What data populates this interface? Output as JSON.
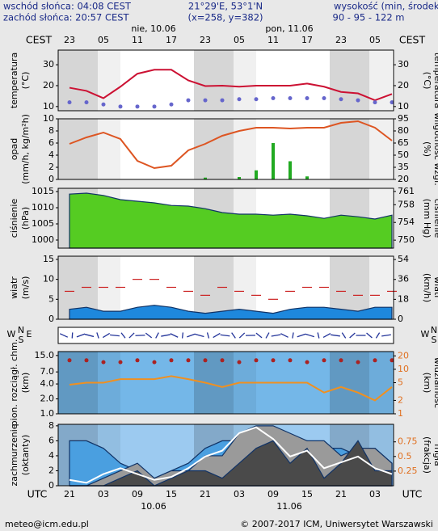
{
  "header": {
    "sunrise": "wschód słońca: 04:08 CEST",
    "sunset": "zachód słońca: 20:57 CEST",
    "coords": "21°29'E, 53°1'N",
    "grid_point": "(x=258, y=382)",
    "height_title": "wysokość (min, środek, max",
    "height_values": "90 - 95 - 122 m"
  },
  "time_axis": {
    "top_zone": "CEST",
    "bottom_zone": "UTC",
    "cest": [
      "23",
      "05",
      "11",
      "17",
      "23",
      "05",
      "11",
      "17",
      "23",
      "05"
    ],
    "utc": [
      "21",
      "03",
      "09",
      "15",
      "21",
      "03",
      "09",
      "15",
      "21",
      "03"
    ],
    "top_dates": [
      "nie, 10.06",
      "pon, 11.06"
    ],
    "bottom_dates": [
      "10.06",
      "11.06"
    ]
  },
  "wind_direction": {
    "letters": [
      "W",
      "N",
      "S",
      "E"
    ]
  },
  "chart_data": [
    {
      "type": "line",
      "ylabel": [
        "temperatura",
        "(°C)"
      ],
      "y2label": [
        "(°C)",
        "temperatura"
      ],
      "ylim": [
        8,
        37
      ],
      "yticks": [
        10,
        20,
        30
      ],
      "y2lim": [
        8,
        37
      ],
      "y2ticks": [
        10,
        20,
        30
      ],
      "background": "#ffffff",
      "series": [
        {
          "mark": "line",
          "color": "#cc1133",
          "values": [
            19,
            17.5,
            14,
            19.5,
            25.7,
            27.6,
            27.6,
            22.5,
            19.8,
            20,
            19.5,
            20,
            20,
            20,
            21,
            19.5,
            17,
            16.3,
            13,
            16
          ]
        },
        {
          "mark": "dots",
          "color": "#6666cc",
          "values": [
            12,
            12,
            11,
            10,
            10,
            10,
            11,
            13,
            13,
            13,
            13.5,
            13.5,
            14,
            14,
            14,
            14,
            13.5,
            13,
            12,
            12
          ]
        }
      ]
    },
    {
      "type": "line",
      "ylabel": [
        "opad",
        "(mm/h, kg/m²h)"
      ],
      "y2label": [
        "(%)",
        "wilgotność wzgl."
      ],
      "ylim": [
        0,
        10
      ],
      "yticks": [
        0,
        2,
        4,
        6,
        8,
        10
      ],
      "y2lim": [
        20,
        95
      ],
      "y2ticks": [
        20,
        35,
        50,
        65,
        80,
        95
      ],
      "y2color": "#000000",
      "background": "#ffffff",
      "series": [
        {
          "mark": "bars",
          "color": "#22aa22",
          "values": [
            0,
            0,
            0,
            0,
            0,
            0,
            0,
            0,
            0.3,
            0,
            0.4,
            1.5,
            6,
            3,
            0.5,
            0,
            0,
            0,
            0,
            0
          ]
        },
        {
          "mark": "line",
          "axis": "y2",
          "color": "#dd5522",
          "values": [
            64,
            72,
            78,
            70,
            43,
            34,
            37,
            56,
            64,
            74,
            80,
            84,
            84,
            83,
            84,
            84,
            90,
            92,
            84,
            68
          ]
        }
      ]
    },
    {
      "type": "line",
      "ylabel": [
        "ciśnienie",
        "(hPa)"
      ],
      "y2label": [
        "(mm Hg)",
        "ciśnienie"
      ],
      "ylim": [
        997.5,
        1016
      ],
      "yticks": [
        1000,
        1005,
        1010,
        1015
      ],
      "y2lim": [
        748.2,
        761.7
      ],
      "y2ticks": [
        750,
        754,
        758,
        761
      ],
      "background": "#ffffff",
      "series": [
        {
          "mark": "area",
          "color": "#55cc22",
          "values": [
            1014.2,
            1014.5,
            1013.8,
            1012.5,
            1012,
            1011.5,
            1010.7,
            1010.5,
            1009.7,
            1008.5,
            1008,
            1008,
            1007.7,
            1008,
            1007.5,
            1006.7,
            1007.7,
            1007.2,
            1006.5,
            1007.7
          ]
        }
      ]
    },
    {
      "type": "line",
      "ylabel": [
        "wiatr",
        "(m/s)"
      ],
      "y2label": [
        "(km/h)",
        "wiatr"
      ],
      "ylim": [
        0,
        15.8
      ],
      "yticks": [
        0,
        5,
        10,
        15
      ],
      "y2lim": [
        0,
        57
      ],
      "y2ticks": [
        0,
        18,
        36,
        54
      ],
      "background": "#ffffff",
      "series": [
        {
          "mark": "area",
          "color": "#1e88dd",
          "values": [
            2.5,
            3,
            2,
            2,
            3,
            3.5,
            3,
            2,
            1.5,
            2,
            2.5,
            2,
            1.5,
            2.5,
            3,
            3,
            2.5,
            2,
            3,
            3
          ]
        },
        {
          "mark": "dashes",
          "color": "#cc2222",
          "values": [
            7,
            8,
            8,
            8,
            10,
            10,
            8,
            7,
            6,
            8,
            7,
            6,
            5,
            7,
            8,
            8,
            7,
            6,
            6,
            7
          ]
        }
      ]
    },
    {
      "type": "line",
      "ylabel": [
        "pion. rozciągł. chm.",
        "(km)"
      ],
      "y2label": [
        "(km)",
        "widzialność"
      ],
      "log_scale": true,
      "ylim": [
        1,
        18
      ],
      "yticks": [
        {
          "value": 15,
          "label": "15.0"
        },
        {
          "value": 7,
          "label": "7.0"
        },
        {
          "value": 4,
          "label": "4.0"
        },
        {
          "value": 2,
          "label": "2.0"
        },
        {
          "value": 1,
          "label": "1.0"
        }
      ],
      "y2lim": [
        1,
        25
      ],
      "y2ticks": [
        1,
        2,
        5,
        10,
        20
      ],
      "y2color": "#e07020",
      "background": "#74b7e8",
      "series": [
        {
          "mark": "dots",
          "color": "#aa2222",
          "values": [
            12,
            12,
            11,
            11,
            12,
            11,
            12,
            12,
            12,
            12,
            11,
            12,
            12,
            12,
            11,
            12,
            12,
            11,
            12,
            12
          ]
        },
        {
          "mark": "line",
          "axis": "y2",
          "color": "#f09020",
          "values": [
            4.5,
            5,
            5,
            6,
            6,
            6,
            7,
            6,
            5,
            4,
            5,
            5,
            5,
            5,
            5,
            3,
            4,
            3,
            2,
            4
          ]
        }
      ]
    },
    {
      "type": "line",
      "ylabel": [
        "zachmurzenie",
        "(oktanty)"
      ],
      "y2label": [
        "(frakcja)",
        "mgła"
      ],
      "ylim": [
        0,
        8.2
      ],
      "yticks": [
        0,
        2,
        4,
        6,
        8
      ],
      "y2lim": [
        0,
        1.05
      ],
      "y2ticks": [
        0.25,
        0.5,
        0.75
      ],
      "y2color": "#e07020",
      "background": "#9ccaf0",
      "series": [
        {
          "mark": "area",
          "color": "#4a9fe0",
          "values": [
            6,
            6,
            5,
            3,
            2,
            1,
            2,
            3,
            5,
            6,
            6,
            5,
            5,
            6,
            6,
            5,
            5,
            4,
            5,
            3
          ]
        },
        {
          "mark": "area",
          "color": "#9a9a9a",
          "values": [
            0,
            0,
            1,
            2,
            3,
            1,
            2,
            2,
            4,
            4,
            7,
            8,
            8,
            7,
            6,
            6,
            4,
            5,
            5,
            3
          ]
        },
        {
          "mark": "area",
          "color": "#4a4a4a",
          "values": [
            0,
            0,
            0,
            1,
            2,
            0,
            1,
            2,
            2,
            1,
            3,
            5,
            6,
            3,
            5,
            1,
            3,
            6,
            2,
            2
          ]
        },
        {
          "mark": "line",
          "axis": "y2",
          "color": "#ffffff",
          "values": [
            0.1,
            0.05,
            0.2,
            0.3,
            0.2,
            0.1,
            0.15,
            0.3,
            0.5,
            0.6,
            0.9,
            1,
            0.8,
            0.5,
            0.6,
            0.3,
            0.4,
            0.5,
            0.3,
            0.2
          ]
        }
      ]
    }
  ],
  "footer": {
    "email": "meteo@icm.edu.pl",
    "copyright": "© 2007-2017 ICM, Uniwersytet Warszawski"
  }
}
